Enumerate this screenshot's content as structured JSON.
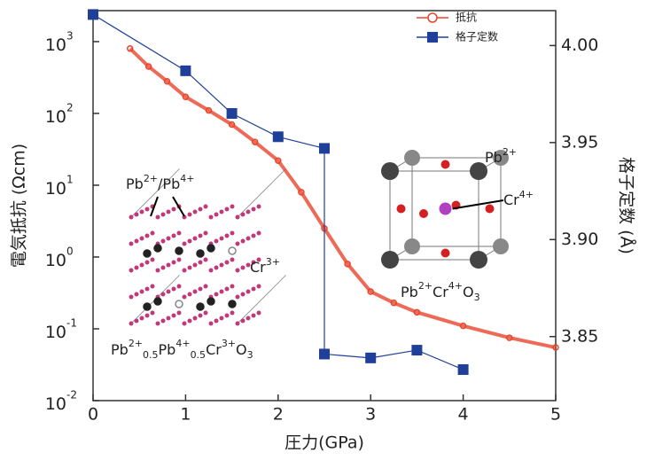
{
  "chart_data": {
    "type": "dual-axis",
    "xlabel": "圧力(GPa)",
    "ylabel": "電気抵抗 (Ωcm)",
    "y2label": "格子定数 (Å)",
    "xlim": [
      0,
      5
    ],
    "xticks": [
      0,
      1,
      2,
      3,
      4,
      5
    ],
    "ylim": [
      0.01,
      2700
    ],
    "log_y": true,
    "yticks": [
      {
        "value": 0.01,
        "label": "10",
        "exponent": "-2"
      },
      {
        "value": 0.1,
        "label": "10",
        "exponent": "-1"
      },
      {
        "value": 1,
        "label": "10",
        "exponent": "0"
      },
      {
        "value": 10,
        "label": "10",
        "exponent": "1"
      },
      {
        "value": 100,
        "label": "10",
        "exponent": "2"
      },
      {
        "value": 1000,
        "label": "10",
        "exponent": "3"
      }
    ],
    "y2lim": [
      3.817,
      4.018
    ],
    "y2ticks": [
      {
        "value": 3.85,
        "label": "3.85"
      },
      {
        "value": 3.9,
        "label": "3.90"
      },
      {
        "value": 3.95,
        "label": "3.95"
      },
      {
        "value": 4.0,
        "label": "4.00"
      }
    ],
    "legend": "upper right",
    "series": [
      {
        "name": "抵抗",
        "color": "#e8452c",
        "marker": "circle",
        "axis": "y",
        "x": [
          0.4,
          0.6,
          0.8,
          1.0,
          1.25,
          1.5,
          1.75,
          2.0,
          2.25,
          2.5,
          2.75,
          3.0,
          3.25,
          3.5,
          4.0,
          4.5,
          5.0
        ],
        "values": [
          800,
          450,
          280,
          170,
          110,
          70,
          40,
          22,
          8,
          2.5,
          0.8,
          0.33,
          0.23,
          0.17,
          0.11,
          0.075,
          0.055
        ]
      },
      {
        "name": "格子定数",
        "color": "#1f3f99",
        "marker": "square",
        "axis": "y2",
        "x": [
          0,
          1,
          1.5,
          2,
          2.5,
          2.5,
          3,
          3.5,
          4
        ],
        "values": [
          4.016,
          3.987,
          3.965,
          3.953,
          3.947,
          3.841,
          3.839,
          3.843,
          3.833
        ]
      }
    ],
    "annotations": {
      "left_sites": [
        "Pb",
        "2+",
        "/Pb",
        "4+"
      ],
      "left_cr": [
        "Cr",
        "3+"
      ],
      "left_formula": [
        "Pb",
        "2+",
        "0.5",
        "Pb",
        "4+",
        "0.5",
        "Cr",
        "3+",
        "O",
        "3"
      ],
      "right_pb": [
        "Pb",
        "2+"
      ],
      "right_cr": [
        "Cr",
        "4+"
      ],
      "right_formula": [
        "Pb",
        "2+",
        "Cr",
        "4+",
        "O",
        "3"
      ]
    }
  }
}
